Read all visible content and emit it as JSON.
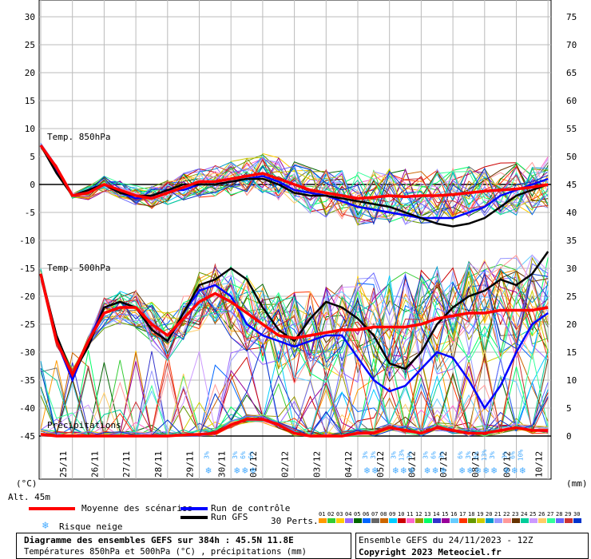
{
  "chart_data": {
    "type": "line",
    "title": "Diagramme des ensembles GEFS sur 384h : 45.5N 11.8E",
    "subtitle": "Températures 850hPa et 500hPa (°C) , précipitations (mm)",
    "run_label": "Ensemble GEFS du 24/11/2023 - 12Z",
    "copyright": "Copyright 2023 Meteociel.fr",
    "left_unit": "(°C)",
    "right_unit": "(mm)",
    "altitude": "Alt. 45m",
    "left_ticks": [
      "30",
      "25",
      "20",
      "15",
      "10",
      "5",
      "0",
      "-5",
      "-10",
      "-15",
      "-20",
      "-25",
      "-30",
      "-35",
      "-40",
      "-45"
    ],
    "right_ticks": [
      "75",
      "70",
      "65",
      "60",
      "55",
      "50",
      "45",
      "40",
      "35",
      "30",
      "25",
      "20",
      "15",
      "10",
      "5",
      "0"
    ],
    "ylim_temp": [
      -45,
      30
    ],
    "ylim_precip_mm": [
      0,
      75
    ],
    "x_labels": [
      "25/11",
      "26/11",
      "27/11",
      "28/11",
      "29/11",
      "30/11",
      "01/12",
      "02/12",
      "03/12",
      "04/12",
      "05/12",
      "06/12",
      "07/12",
      "08/12",
      "09/12",
      "10/12"
    ],
    "panel_labels": {
      "t850": "Temp. 850hPa",
      "t500": "Temp. 500hPa",
      "precip": "Précipitations"
    },
    "legend": {
      "mean": "Moyenne des scénarios",
      "control": "Run de contrôle",
      "gfs": "Run GFS",
      "snow": "Risque neige",
      "perts_label": "30 Perts.",
      "pert_numbers": [
        "01",
        "02",
        "03",
        "04",
        "05",
        "06",
        "07",
        "08",
        "09",
        "10",
        "11",
        "12",
        "13",
        "14",
        "15",
        "16",
        "17",
        "18",
        "19",
        "20",
        "21",
        "22",
        "23",
        "24",
        "25",
        "26",
        "27",
        "28",
        "29",
        "30"
      ]
    },
    "colors": {
      "mean": "#ff0000",
      "control": "#0000ff",
      "gfs": "#000000",
      "snow": "#44aaff",
      "perts": [
        "#ff9900",
        "#33cc33",
        "#ffcc00",
        "#9966ff",
        "#006600",
        "#0066ff",
        "#666666",
        "#cc6600",
        "#00ccff",
        "#cc0000",
        "#ff66cc",
        "#999900",
        "#00ff66",
        "#3333cc",
        "#990099",
        "#66ccff",
        "#ff3300",
        "#669900",
        "#cccc00",
        "#0099cc",
        "#9999ff",
        "#ff9999",
        "#663300",
        "#00cc99",
        "#cc99ff",
        "#ffcc66",
        "#33ff99",
        "#6666ff",
        "#cc3333",
        "#0033cc"
      ]
    },
    "series": [
      {
        "name": "Moyenne 850hPa",
        "x": [
          0,
          0.5,
          1,
          1.5,
          2,
          2.5,
          3,
          3.5,
          4,
          4.5,
          5,
          5.5,
          6,
          6.5,
          7,
          7.5,
          8,
          8.5,
          9,
          9.5,
          10,
          10.5,
          11,
          11.5,
          12,
          12.5,
          13,
          13.5,
          14,
          14.5,
          15,
          15.5,
          16
        ],
        "values": [
          7,
          3,
          -2,
          -1.5,
          0,
          -1,
          -2,
          -2.5,
          -1.5,
          -0.5,
          0.5,
          0.5,
          1,
          1.5,
          2,
          1,
          0,
          -1,
          -1.5,
          -2,
          -2.5,
          -2.3,
          -2,
          -2.2,
          -2,
          -2,
          -1.8,
          -1.5,
          -1.2,
          -1,
          -0.8,
          -0.5,
          0
        ]
      },
      {
        "name": "Contrôle 850hPa",
        "x": [
          0,
          0.5,
          1,
          1.5,
          2,
          2.5,
          3,
          3.5,
          4,
          4.5,
          5,
          5.5,
          6,
          6.5,
          7,
          7.5,
          8,
          8.5,
          9,
          9.5,
          10,
          10.5,
          11,
          11.5,
          12,
          12.5,
          13,
          13.5,
          14,
          14.5,
          15,
          15.5,
          16
        ],
        "values": [
          7,
          2.5,
          -2,
          -1,
          0,
          -1.5,
          -2.5,
          -2,
          -1,
          -1,
          0,
          0,
          0.5,
          1,
          1.5,
          0.5,
          -1,
          -1.5,
          -2,
          -3,
          -4,
          -4.5,
          -5,
          -5.5,
          -6,
          -6,
          -6,
          -5,
          -4,
          -2,
          -1,
          0,
          1
        ]
      },
      {
        "name": "GFS 850hPa",
        "x": [
          0,
          0.5,
          1,
          1.5,
          2,
          2.5,
          3,
          3.5,
          4,
          4.5,
          5,
          5.5,
          6,
          6.5,
          7,
          7.5,
          8,
          8.5,
          9,
          9.5,
          10,
          10.5,
          11,
          11.5,
          12,
          12.5,
          13,
          13.5,
          14,
          14.5,
          15,
          15.5,
          16
        ],
        "values": [
          7,
          2,
          -2,
          -1,
          0,
          -1.5,
          -2,
          -2,
          -1,
          0,
          0,
          0,
          0.5,
          1,
          1,
          0,
          -1.5,
          -2,
          -2,
          -2.5,
          -3,
          -3.5,
          -4,
          -5,
          -6,
          -7,
          -7.5,
          -7,
          -6,
          -4,
          -2,
          -1,
          0
        ]
      },
      {
        "name": "Moyenne 500hPa",
        "x": [
          0,
          0.5,
          1,
          1.5,
          2,
          2.5,
          3,
          3.5,
          4,
          4.5,
          5,
          5.5,
          6,
          6.5,
          7,
          7.5,
          8,
          8.5,
          9,
          9.5,
          10,
          10.5,
          11,
          11.5,
          12,
          12.5,
          13,
          13.5,
          14,
          14.5,
          15,
          15.5,
          16
        ],
        "values": [
          -16,
          -28,
          -34,
          -28,
          -23,
          -22,
          -22,
          -25,
          -27,
          -24,
          -21,
          -19.5,
          -21,
          -23,
          -25,
          -27,
          -27.5,
          -27,
          -26.5,
          -26,
          -26,
          -25.5,
          -25.5,
          -25.5,
          -25,
          -24,
          -23.5,
          -23,
          -23,
          -22.5,
          -22.5,
          -22.5,
          -22
        ]
      },
      {
        "name": "Contrôle 500hPa",
        "x": [
          0,
          0.5,
          1,
          1.5,
          2,
          2.5,
          3,
          3.5,
          4,
          4.5,
          5,
          5.5,
          6,
          6.5,
          7,
          7.5,
          8,
          8.5,
          9,
          9.5,
          10,
          10.5,
          11,
          11.5,
          12,
          12.5,
          13,
          13.5,
          14,
          14.5,
          15,
          15.5,
          16
        ],
        "values": [
          -16,
          -28,
          -35,
          -28,
          -22,
          -21,
          -22,
          -26,
          -28,
          -23,
          -19,
          -18,
          -20,
          -25,
          -27,
          -28,
          -29,
          -28,
          -27,
          -27,
          -31,
          -35,
          -37,
          -36,
          -33,
          -30,
          -31,
          -35,
          -40,
          -36,
          -30,
          -25,
          -23
        ]
      },
      {
        "name": "GFS 500hPa",
        "x": [
          0,
          0.5,
          1,
          1.5,
          2,
          2.5,
          3,
          3.5,
          4,
          4.5,
          5,
          5.5,
          6,
          6.5,
          7,
          7.5,
          8,
          8.5,
          9,
          9.5,
          10,
          10.5,
          11,
          11.5,
          12,
          12.5,
          13,
          13.5,
          14,
          14.5,
          15,
          15.5,
          16
        ],
        "values": [
          -16,
          -27,
          -34,
          -29,
          -22,
          -21,
          -22,
          -26,
          -28,
          -23,
          -18,
          -17,
          -15,
          -17,
          -22,
          -26,
          -28,
          -24,
          -21,
          -22,
          -24,
          -27,
          -32,
          -33,
          -30,
          -25,
          -22,
          -20,
          -19,
          -17,
          -18,
          -16,
          -12
        ]
      },
      {
        "name": "Moyenne précipitations",
        "x": [
          0,
          0.5,
          1,
          1.5,
          2,
          2.5,
          3,
          3.5,
          4,
          4.5,
          5,
          5.5,
          6,
          6.5,
          7,
          7.5,
          8,
          8.5,
          9,
          9.5,
          10,
          10.5,
          11,
          11.5,
          12,
          12.5,
          13,
          13.5,
          14,
          14.5,
          15,
          15.5,
          16
        ],
        "values": [
          0.3,
          0,
          0,
          0,
          0,
          0,
          0,
          0,
          0,
          0.2,
          0.3,
          0.5,
          2,
          3,
          3,
          2,
          0.5,
          0,
          0,
          0,
          0.5,
          0.5,
          1.5,
          1,
          0.5,
          1.5,
          1,
          0.5,
          0.5,
          1,
          1.5,
          1,
          1
        ]
      }
    ],
    "snow_risk": [
      {
        "x": 5.3,
        "pct": [
          "3%"
        ]
      },
      {
        "x": 6.2,
        "pct": [
          "3%",
          "6%",
          "6%"
        ]
      },
      {
        "x": 10.3,
        "pct": [
          "3%",
          "3%"
        ]
      },
      {
        "x": 11.2,
        "pct": [
          "3%",
          "13%",
          "3%"
        ]
      },
      {
        "x": 12.2,
        "pct": [
          "3%",
          "6%",
          "3%"
        ]
      },
      {
        "x": 13.3,
        "pct": [
          "6%",
          "3%",
          "6%",
          "13%",
          "3%"
        ]
      },
      {
        "x": 14.7,
        "pct": [
          "3%",
          "6%",
          "10%"
        ]
      }
    ]
  }
}
